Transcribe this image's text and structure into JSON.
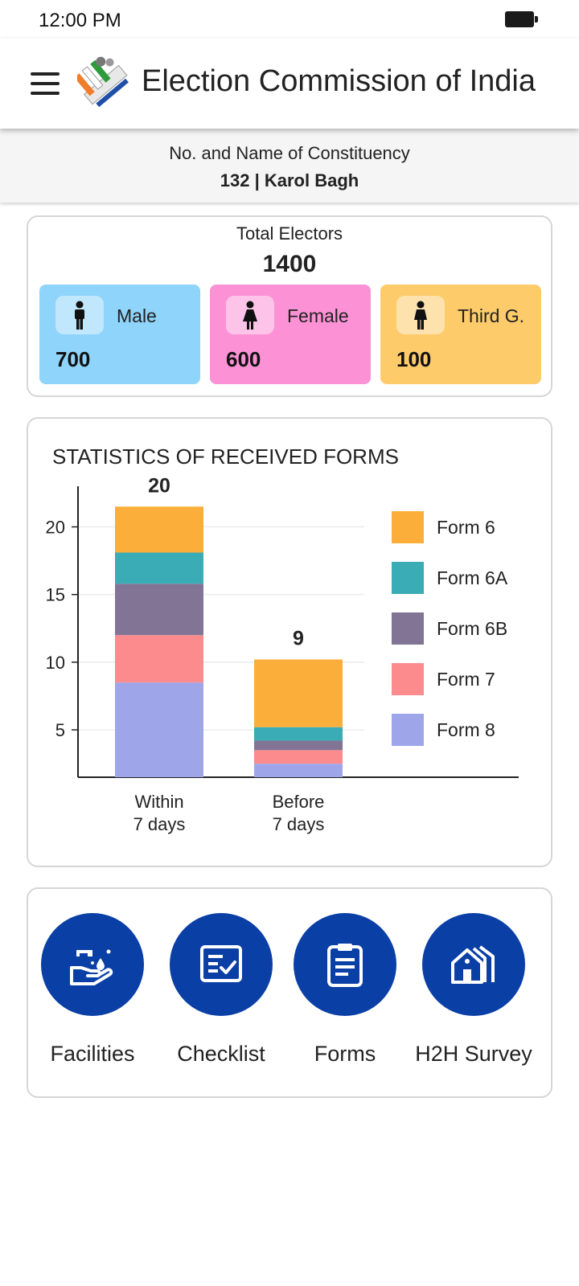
{
  "status_bar": {
    "time": "12:00 PM",
    "battery_icon": "battery-icon"
  },
  "app_bar": {
    "title": "Election Commission of India",
    "menu_icon": "hamburger-menu-icon",
    "logo": "eci-logo"
  },
  "constituency": {
    "label": "No. and Name of Constituency",
    "value": "132 | Karol Bagh"
  },
  "electors": {
    "title": "Total Electors",
    "total": "1400",
    "male": {
      "label": "Male",
      "value": "700",
      "color": "#8ed4fb"
    },
    "female": {
      "label": "Female",
      "value": "600",
      "color": "#fc92d5"
    },
    "third": {
      "label": "Third G.",
      "value": "100",
      "color": "#fdcb6a"
    }
  },
  "stats": {
    "title": "STATISTICS OF RECEIVED FORMS"
  },
  "chart_data": {
    "type": "bar",
    "stacked": true,
    "title": "STATISTICS OF RECEIVED FORMS",
    "categories": [
      "Within\n7 days",
      "Before\n7 days"
    ],
    "category_lines": [
      [
        "Within",
        "7 days"
      ],
      [
        "Before",
        "7 days"
      ]
    ],
    "totals": [
      20,
      9
    ],
    "series": [
      {
        "name": "Form 8",
        "color": "#9ea6e9",
        "values": [
          7,
          1
        ]
      },
      {
        "name": "Form 7",
        "color": "#fc8b8e",
        "values": [
          3.5,
          1
        ]
      },
      {
        "name": "Form 6B",
        "color": "#827494",
        "values": [
          3.8,
          0.7
        ]
      },
      {
        "name": "Form 6A",
        "color": "#3aacb5",
        "values": [
          2.3,
          1
        ]
      },
      {
        "name": "Form 6",
        "color": "#fbaf3a",
        "values": [
          3.4,
          5
        ]
      }
    ],
    "legend_order": [
      "Form 6",
      "Form 6A",
      "Form 6B",
      "Form 7",
      "Form 8"
    ],
    "yticks": [
      5,
      10,
      15,
      20
    ],
    "ylim": [
      1.5,
      23
    ],
    "legend_position": "right",
    "grid": true
  },
  "actions": [
    {
      "label": "Facilities",
      "icon": "hand-wash-icon"
    },
    {
      "label": "Checklist",
      "icon": "checklist-icon"
    },
    {
      "label": "Forms",
      "icon": "clipboard-icon"
    },
    {
      "label": "H2H Survey",
      "icon": "house-icon"
    }
  ]
}
